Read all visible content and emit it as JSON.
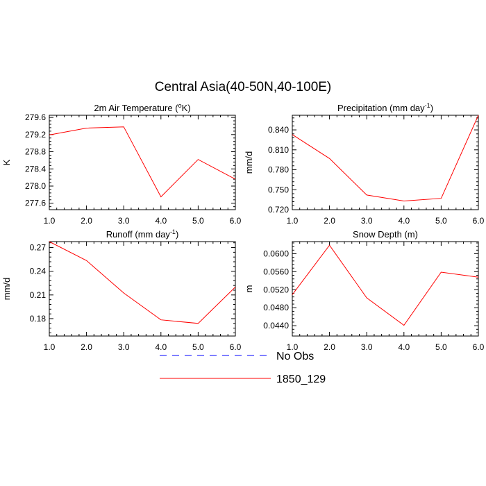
{
  "title": "Central Asia(40-50N,40-100E)",
  "colors": {
    "model": "#ff0000",
    "obs": "#0000ff",
    "axis": "#000000"
  },
  "legend": {
    "items": [
      {
        "label": "No Obs",
        "style": "dashed",
        "color": "#0000ff"
      },
      {
        "label": "1850_129",
        "style": "solid",
        "color": "#ff0000"
      }
    ]
  },
  "chart_data": [
    {
      "type": "line",
      "title_main": "2m Air Temperature (",
      "title_sup": "o",
      "title_tail": "K)",
      "ylabel": "K",
      "x": [
        1,
        2,
        3,
        4,
        5,
        6
      ],
      "xticks": [
        "1.0",
        "2.0",
        "3.0",
        "4.0",
        "5.0",
        "6.0"
      ],
      "yticks": [
        "277.6",
        "278.0",
        "278.4",
        "278.8",
        "279.2",
        "279.6"
      ],
      "ytick_values": [
        277.6,
        278.0,
        278.4,
        278.8,
        279.2,
        279.6
      ],
      "ylim": [
        277.45,
        279.65
      ],
      "xlim": [
        1,
        6
      ],
      "series": [
        {
          "values": [
            279.19,
            279.35,
            279.38,
            277.75,
            278.62,
            278.16
          ]
        }
      ]
    },
    {
      "type": "line",
      "title_main": "Precipitation (mm day",
      "title_sup": "-1",
      "title_tail": ")",
      "ylabel": "mm/d",
      "x": [
        1,
        2,
        3,
        4,
        5,
        6
      ],
      "xticks": [
        "1.0",
        "2.0",
        "3.0",
        "4.0",
        "5.0",
        "6.0"
      ],
      "yticks": [
        "0.720",
        "0.750",
        "0.780",
        "0.810",
        "0.840"
      ],
      "ytick_values": [
        0.72,
        0.75,
        0.78,
        0.81,
        0.84
      ],
      "ylim": [
        0.72,
        0.862
      ],
      "xlim": [
        1,
        6
      ],
      "series": [
        {
          "values": [
            0.833,
            0.797,
            0.742,
            0.733,
            0.737,
            0.862
          ]
        }
      ]
    },
    {
      "type": "line",
      "title_main": "Runoff (mm day",
      "title_sup": "-1",
      "title_tail": ")",
      "ylabel": "mm/d",
      "x": [
        1,
        2,
        3,
        4,
        5,
        6
      ],
      "xticks": [
        "1.0",
        "2.0",
        "3.0",
        "4.0",
        "5.0",
        "6.0"
      ],
      "yticks": [
        "0.18",
        "0.21",
        "0.24",
        "0.27"
      ],
      "ytick_values": [
        0.18,
        0.21,
        0.24,
        0.27
      ],
      "ylim": [
        0.158,
        0.2775
      ],
      "xlim": [
        1,
        6
      ],
      "series": [
        {
          "values": [
            0.2775,
            0.2535,
            0.2125,
            0.1785,
            0.174,
            0.22
          ]
        }
      ]
    },
    {
      "type": "line",
      "title_main": "Snow Depth (m)",
      "title_sup": "",
      "title_tail": "",
      "ylabel": "m",
      "x": [
        1,
        2,
        3,
        4,
        5,
        6
      ],
      "xticks": [
        "1.0",
        "2.0",
        "3.0",
        "4.0",
        "5.0",
        "6.0"
      ],
      "yticks": [
        "0.0440",
        "0.0480",
        "0.0520",
        "0.0560",
        "0.0600"
      ],
      "ytick_values": [
        0.044,
        0.048,
        0.052,
        0.056,
        0.06
      ],
      "ylim": [
        0.0417,
        0.0627
      ],
      "xlim": [
        1,
        6
      ],
      "series": [
        {
          "values": [
            0.0509,
            0.0619,
            0.0502,
            0.0441,
            0.0559,
            0.0548
          ]
        }
      ]
    }
  ]
}
